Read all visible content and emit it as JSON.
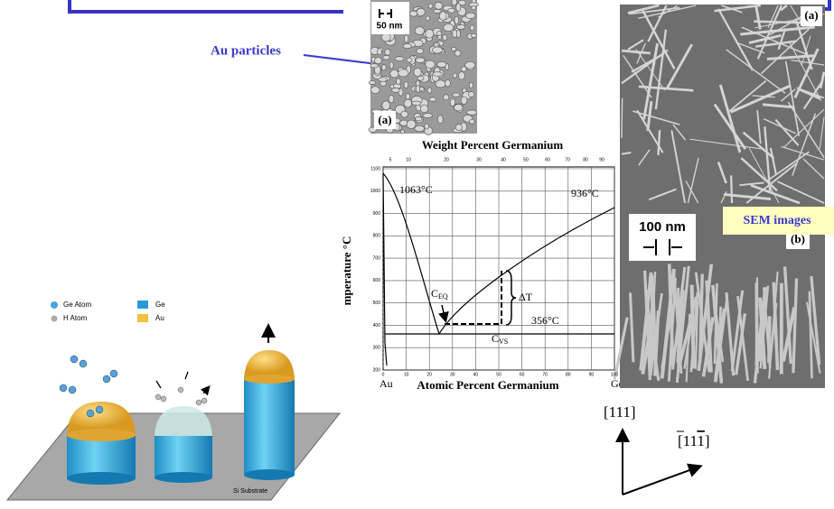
{
  "callout": "Au particles",
  "sem_top": {
    "scale": "50 nm",
    "panel": "(a)"
  },
  "phase_diagram": {
    "top_axis_title": "Weight Percent Germanium",
    "top_ticks": [
      "5",
      "10",
      "20",
      "30",
      "40",
      "50",
      "60",
      "70",
      "80",
      "90"
    ],
    "y_axis_title": "mperature °C",
    "y_ticks": [
      "1100",
      "1000",
      "900",
      "800",
      "700",
      "600",
      "500",
      "400",
      "300",
      "200"
    ],
    "x_ticks": [
      "0",
      "10",
      "20",
      "30",
      "40",
      "50",
      "60",
      "70",
      "80",
      "90",
      "100"
    ],
    "x_axis_title": "Atomic Percent Germanium",
    "x_left": "Au",
    "x_right": "Ge",
    "annotations": {
      "au_melt": "1063°C",
      "ge_melt": "936°C",
      "eutectic": "356°C",
      "delta_t": "ΔT",
      "c_eq": {
        "main": "C",
        "sub": "EQ"
      },
      "c_vs": {
        "main": "C",
        "sub": "VS"
      }
    }
  },
  "sem_right": {
    "panel_a": "(a)",
    "panel_b": "(b)",
    "scale": "100 nm",
    "label": "SEM images"
  },
  "directions": {
    "up": "[111]",
    "side": "[11",
    "side_bar": "1",
    "side_end": "]"
  },
  "schematic": {
    "legend": [
      "Ge Atom",
      "H Atom",
      "Ge",
      "Au"
    ],
    "substrate": "Si Substrate"
  }
}
